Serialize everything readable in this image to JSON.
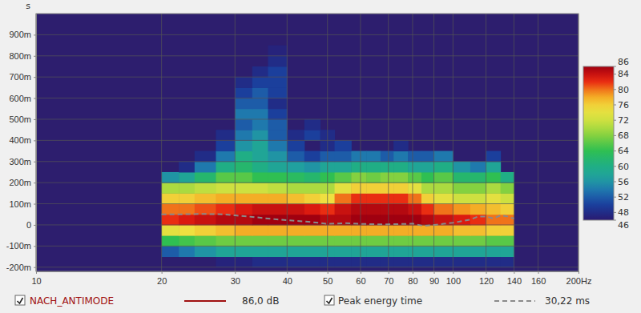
{
  "chart_data": {
    "type": "heatmap",
    "log": "x",
    "grid": true,
    "legend": "bottom",
    "y_label": "s",
    "xlim": [
      10,
      200
    ],
    "ylim": [
      -0.22,
      1.0
    ],
    "xticks": [
      10,
      20,
      30,
      40,
      50,
      60,
      70,
      80,
      90,
      100,
      120,
      140,
      160,
      {
        "value": 200,
        "label": "200Hz"
      }
    ],
    "yticks": [
      {
        "value": -0.2,
        "label": "-200m"
      },
      {
        "value": -0.1,
        "label": "-100m"
      },
      0,
      {
        "value": 0.1,
        "label": "100m"
      },
      {
        "value": 0.2,
        "label": "200m"
      },
      {
        "value": 0.3,
        "label": "300m"
      },
      {
        "value": 0.4,
        "label": "400m"
      },
      {
        "value": 0.5,
        "label": "500m"
      },
      {
        "value": 0.6,
        "label": "600m"
      },
      {
        "value": 0.7,
        "label": "700m"
      },
      {
        "value": 0.8,
        "label": "800m"
      },
      {
        "value": 0.9,
        "label": "900m"
      }
    ],
    "zlim": [
      46,
      86
    ],
    "zticks": [
      46,
      48,
      52,
      56,
      60,
      64,
      68,
      72,
      76,
      80,
      84,
      86
    ],
    "series": [
      {
        "name": "NACH_ANTIMODE",
        "type": "heatmap",
        "color": "#a01010",
        "label": "86,0 dB",
        "x_bins": [
          20,
          22,
          24,
          27,
          30,
          33,
          36,
          40,
          44,
          48,
          52,
          57,
          62,
          67,
          72,
          78,
          84,
          90,
          100,
          110,
          120,
          130,
          140
        ],
        "y_bins": [
          -0.2,
          -0.15,
          -0.1,
          -0.05,
          0,
          0.05,
          0.1,
          0.15,
          0.2,
          0.25,
          0.3,
          0.35,
          0.4,
          0.45,
          0.5,
          0.55,
          0.6,
          0.65,
          0.7,
          0.75,
          0.8,
          0.85
        ],
        "values": [
          [
            null,
            null,
            null,
            47,
            47,
            48,
            48,
            48,
            48,
            48,
            48,
            48,
            48,
            48,
            48,
            48,
            48,
            48,
            48,
            48,
            48,
            48
          ],
          [
            52,
            54,
            56,
            58,
            58,
            58,
            58,
            58,
            58,
            58,
            58,
            58,
            58,
            58,
            58,
            58,
            58,
            58,
            58,
            58,
            58,
            58
          ],
          [
            64,
            65,
            66,
            67,
            67,
            67,
            67,
            67,
            67,
            67,
            67,
            67,
            67,
            67,
            67,
            67,
            67,
            67,
            67,
            67,
            66,
            66
          ],
          [
            74,
            75,
            76,
            77,
            78,
            78,
            78,
            78,
            78,
            78,
            78,
            78,
            78,
            78,
            78,
            78,
            78,
            78,
            77,
            77,
            76,
            76
          ],
          [
            82,
            83,
            84,
            85,
            85,
            86,
            86,
            86,
            86,
            85,
            85,
            86,
            86,
            86,
            86,
            86,
            85,
            84,
            83,
            82,
            80,
            80
          ],
          [
            80,
            80,
            81,
            82,
            83,
            84,
            84,
            84,
            83,
            82,
            84,
            85,
            85,
            85,
            85,
            84,
            82,
            80,
            79,
            78,
            77,
            76
          ],
          [
            76,
            76,
            77,
            78,
            78,
            78,
            78,
            77,
            76,
            75,
            80,
            82,
            82,
            82,
            82,
            80,
            76,
            74,
            72,
            72,
            74,
            72
          ],
          [
            70,
            70,
            71,
            72,
            72,
            72,
            71,
            70,
            70,
            70,
            74,
            76,
            76,
            76,
            76,
            74,
            70,
            70,
            68,
            68,
            70,
            68
          ],
          [
            56,
            58,
            62,
            66,
            66,
            64,
            64,
            63,
            62,
            64,
            66,
            68,
            67,
            68,
            68,
            66,
            64,
            66,
            62,
            62,
            64,
            60
          ],
          [
            null,
            48,
            54,
            60,
            62,
            60,
            58,
            57,
            56,
            58,
            58,
            60,
            60,
            60,
            60,
            58,
            58,
            60,
            56,
            54,
            58,
            null
          ],
          [
            null,
            null,
            48,
            54,
            60,
            58,
            56,
            52,
            50,
            52,
            52,
            54,
            54,
            52,
            54,
            52,
            52,
            54,
            null,
            null,
            50,
            null
          ],
          [
            null,
            null,
            null,
            50,
            56,
            58,
            54,
            50,
            null,
            48,
            50,
            null,
            null,
            null,
            48,
            null,
            null,
            null,
            null,
            null,
            null,
            null
          ],
          [
            null,
            null,
            null,
            48,
            54,
            56,
            52,
            48,
            50,
            48,
            null,
            null,
            null,
            null,
            null,
            null,
            null,
            null,
            null,
            null,
            null,
            null
          ],
          [
            null,
            null,
            null,
            null,
            52,
            54,
            52,
            null,
            48,
            null,
            null,
            null,
            null,
            null,
            null,
            null,
            null,
            null,
            null,
            null,
            null,
            null
          ],
          [
            null,
            null,
            null,
            null,
            54,
            54,
            50,
            null,
            null,
            null,
            null,
            null,
            null,
            null,
            null,
            null,
            null,
            null,
            null,
            null,
            null,
            null
          ],
          [
            null,
            null,
            null,
            null,
            52,
            52,
            48,
            null,
            null,
            null,
            null,
            null,
            null,
            null,
            null,
            null,
            null,
            null,
            null,
            null,
            null,
            null
          ],
          [
            null,
            null,
            null,
            null,
            50,
            52,
            50,
            null,
            null,
            null,
            null,
            null,
            null,
            null,
            null,
            null,
            null,
            null,
            null,
            null,
            null,
            null
          ],
          [
            null,
            null,
            null,
            null,
            48,
            50,
            50,
            null,
            null,
            null,
            null,
            null,
            null,
            null,
            null,
            null,
            null,
            null,
            null,
            null,
            null,
            null
          ],
          [
            null,
            null,
            null,
            null,
            null,
            48,
            50,
            null,
            null,
            null,
            null,
            null,
            null,
            null,
            null,
            null,
            null,
            null,
            null,
            null,
            null,
            null
          ],
          [
            null,
            null,
            null,
            null,
            null,
            null,
            48,
            null,
            null,
            null,
            null,
            null,
            null,
            null,
            null,
            null,
            null,
            null,
            null,
            null,
            null,
            null
          ],
          [
            null,
            null,
            null,
            null,
            null,
            null,
            47,
            null,
            null,
            null,
            null,
            null,
            null,
            null,
            null,
            null,
            null,
            null,
            null,
            null,
            null,
            null
          ]
        ]
      },
      {
        "name": "Peak energy time",
        "type": "line",
        "color": "#8a8a8a",
        "line_style": "dashed",
        "label": "30,22 ms",
        "x": [
          20,
          22,
          25,
          28,
          30,
          33,
          36,
          40,
          45,
          50,
          55,
          60,
          65,
          70,
          75,
          80,
          85,
          90,
          95,
          100,
          110,
          115,
          120,
          125,
          130,
          135,
          140
        ],
        "values": [
          0.05,
          0.05,
          0.052,
          0.05,
          0.045,
          0.038,
          0.03,
          0.022,
          0.015,
          0.005,
          0.008,
          0.005,
          0.003,
          0.003,
          0.004,
          0.006,
          -0.005,
          0,
          0.005,
          0.01,
          0.025,
          0.04,
          0.04,
          0.03,
          0.045,
          0.04,
          0.03
        ]
      }
    ]
  }
}
